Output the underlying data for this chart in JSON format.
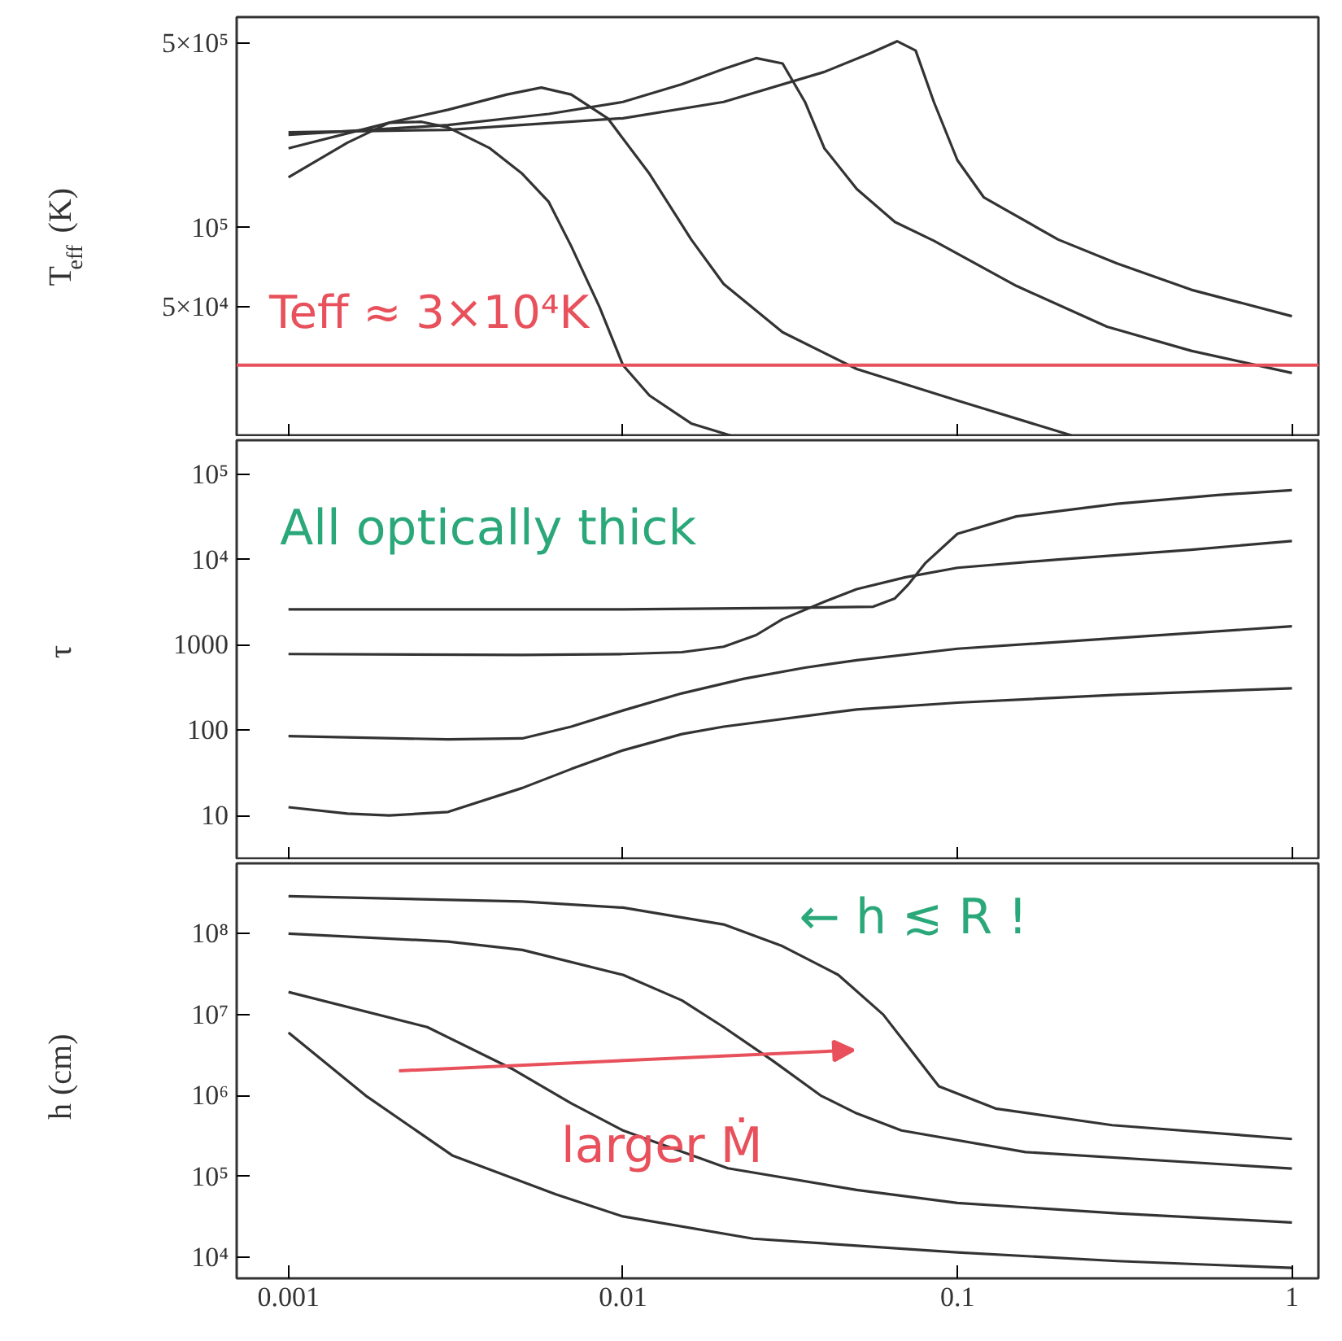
{
  "chart_data": [
    {
      "type": "line",
      "ylabel": "T$_{eff}$ (K)",
      "log": "xy",
      "xlim": [
        0.0007,
        1.2
      ],
      "ylim": [
        16000,
        630000
      ],
      "xticks": [
        0.001,
        0.01,
        0.1,
        1
      ],
      "yticks": [
        {
          "value": 50000,
          "label": "5×10⁴"
        },
        {
          "value": 100000,
          "label": "10⁵"
        },
        {
          "value": 500000,
          "label": "5×10⁵"
        }
      ],
      "tick_labels": "y",
      "ref_lines": [
        {
          "axis": "y",
          "value": 30000,
          "label": "Teff ≈ 3×10⁴K",
          "color": "#e8505b"
        }
      ],
      "series": [
        {
          "color": "#333333",
          "x": [
            0.001,
            0.0015,
            0.002,
            0.0025,
            0.003,
            0.004,
            0.005,
            0.006,
            0.007,
            0.0085,
            0.01,
            0.012,
            0.016,
            0.021
          ],
          "values": [
            155000,
            210000,
            250000,
            252000,
            240000,
            200000,
            160000,
            125000,
            85000,
            50000,
            30000,
            23000,
            18000,
            16200
          ]
        },
        {
          "color": "#333333",
          "x": [
            0.001,
            0.002,
            0.003,
            0.0045,
            0.0057,
            0.007,
            0.009,
            0.012,
            0.016,
            0.02,
            0.03,
            0.05,
            0.1,
            0.22
          ],
          "values": [
            200000,
            250000,
            280000,
            320000,
            340000,
            320000,
            260000,
            160000,
            90000,
            61000,
            40000,
            29000,
            22000,
            16200
          ]
        },
        {
          "color": "#333333",
          "x": [
            0.001,
            0.003,
            0.006,
            0.01,
            0.015,
            0.02,
            0.025,
            0.03,
            0.035,
            0.04,
            0.05,
            0.065,
            0.085,
            0.15,
            0.28,
            0.5,
            1
          ],
          "values": [
            225000,
            245000,
            270000,
            300000,
            350000,
            400000,
            440000,
            420000,
            300000,
            200000,
            140000,
            105000,
            89000,
            60000,
            42000,
            34000,
            28000
          ]
        },
        {
          "color": "#333333",
          "x": [
            0.001,
            0.003,
            0.01,
            0.02,
            0.04,
            0.055,
            0.066,
            0.075,
            0.085,
            0.1,
            0.12,
            0.2,
            0.3,
            0.5,
            1
          ],
          "values": [
            230000,
            235000,
            260000,
            300000,
            390000,
            460000,
            510000,
            470000,
            300000,
            180000,
            130000,
            90000,
            73000,
            58000,
            46000
          ]
        }
      ]
    },
    {
      "type": "line",
      "ylabel": "τ",
      "log": "xy",
      "xlim": [
        0.0007,
        1.2
      ],
      "ylim": [
        3,
        250000
      ],
      "xticks": [
        0.001,
        0.01,
        0.1,
        1
      ],
      "yticks": [
        10,
        100,
        1000,
        {
          "value": 10000,
          "label": "10⁴"
        },
        {
          "value": 100000,
          "label": "10⁵"
        }
      ],
      "tick_labels": "y",
      "annotations": [
        "All optically thick"
      ],
      "series": [
        {
          "color": "#333333",
          "x": [
            0.001,
            0.01,
            0.03,
            0.056,
            0.065,
            0.071,
            0.08,
            0.1,
            0.15,
            0.3,
            0.6,
            1
          ],
          "values": [
            2600,
            2600,
            2700,
            2800,
            3500,
            5000,
            9000,
            20000,
            32000,
            45000,
            57000,
            65000
          ]
        },
        {
          "color": "#333333",
          "x": [
            0.001,
            0.005,
            0.01,
            0.015,
            0.02,
            0.025,
            0.03,
            0.04,
            0.05,
            0.07,
            0.1,
            0.2,
            0.5,
            1
          ],
          "values": [
            780,
            760,
            780,
            820,
            950,
            1300,
            2000,
            3200,
            4500,
            6200,
            8000,
            10000,
            13000,
            16500
          ]
        },
        {
          "color": "#333333",
          "x": [
            0.001,
            0.003,
            0.005,
            0.007,
            0.01,
            0.015,
            0.023,
            0.035,
            0.05,
            0.1,
            0.3,
            1
          ],
          "values": [
            85,
            78,
            80,
            110,
            170,
            270,
            400,
            540,
            660,
            900,
            1200,
            1650
          ]
        },
        {
          "color": "#333333",
          "x": [
            0.001,
            0.0015,
            0.002,
            0.003,
            0.005,
            0.007,
            0.01,
            0.015,
            0.02,
            0.05,
            0.1,
            0.3,
            1
          ],
          "values": [
            12.5,
            10.5,
            10,
            11,
            21,
            35,
            58,
            90,
            110,
            175,
            210,
            260,
            310
          ]
        }
      ]
    },
    {
      "type": "line",
      "ylabel": "h (cm)",
      "log": "xy",
      "xlim": [
        0.0007,
        1.2
      ],
      "ylim": [
        5500,
        740000000
      ],
      "xticks": [
        0.001,
        0.01,
        0.1,
        1
      ],
      "yticks": [
        {
          "value": 10000,
          "label": "10⁴"
        },
        {
          "value": 100000,
          "label": "10⁵"
        },
        {
          "value": 1000000,
          "label": "10⁶"
        },
        {
          "value": 10000000,
          "label": "10⁷"
        },
        {
          "value": 100000000,
          "label": "10⁸"
        }
      ],
      "annotations": [
        "← h ≲ R !",
        "larger Ṁ"
      ],
      "series": [
        {
          "color": "#333333",
          "x": [
            0.001,
            0.005,
            0.01,
            0.02,
            0.03,
            0.044,
            0.06,
            0.07,
            0.088,
            0.13,
            0.29,
            1
          ],
          "values": [
            290000000,
            250000000,
            210000000,
            130000000,
            70000000,
            31000000,
            10000000,
            4400000,
            1300000,
            690000,
            430000,
            290000
          ]
        },
        {
          "color": "#333333",
          "x": [
            0.001,
            0.003,
            0.005,
            0.01,
            0.015,
            0.02,
            0.028,
            0.039,
            0.05,
            0.068,
            0.16,
            1
          ],
          "values": [
            100000000,
            80000000,
            63000000,
            31000000,
            15000000,
            7000000,
            2700000,
            1000000,
            600000,
            370000,
            200000,
            125000
          ]
        },
        {
          "color": "#333333",
          "x": [
            0.001,
            0.0026,
            0.0047,
            0.007,
            0.01,
            0.0206,
            0.05,
            0.1,
            0.3,
            1
          ],
          "values": [
            19000000,
            7000000,
            2100000,
            800000,
            370000,
            126000,
            68000,
            47000,
            35000,
            27000
          ]
        },
        {
          "color": "#333333",
          "x": [
            0.001,
            0.0017,
            0.0031,
            0.0063,
            0.01,
            0.0245,
            0.1,
            0.3,
            1
          ],
          "values": [
            6000000,
            1000000,
            180000,
            60000,
            32000,
            17000,
            11500,
            9000,
            7400
          ]
        }
      ]
    }
  ]
}
